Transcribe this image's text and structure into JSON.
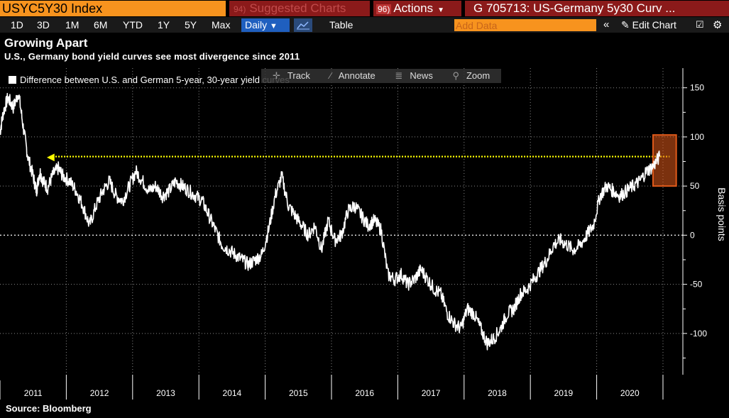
{
  "toolbar": {
    "ticker": "USYC5Y30 Index",
    "suggested_num": "94)",
    "suggested_label": "Suggested Charts",
    "actions_num": "96)",
    "actions_label": "Actions",
    "graph_title": "G 705713: US-Germany 5y30 Curv ..."
  },
  "periods": [
    "1D",
    "3D",
    "1M",
    "6M",
    "YTD",
    "1Y",
    "5Y",
    "Max"
  ],
  "frequency": "Daily",
  "table_label": "Table",
  "add_data_placeholder": "Add Data",
  "edit_chart_label": "Edit Chart",
  "header": {
    "title": "Growing Apart",
    "subtitle": "U.S., Germany bond yield curves see most divergence since 2011"
  },
  "legend": {
    "label": "Difference between U.S. and German 5-year, 30-year yield curves"
  },
  "chart_tools": {
    "track": "Track",
    "annotate": "Annotate",
    "news": "News",
    "zoom": "Zoom"
  },
  "source": "Source: Bloomberg",
  "colors": {
    "ticker_bg": "#f7931e",
    "tab_bg": "#8b1a1a",
    "daily_bg": "#1f5fbf",
    "line": "#ffffff",
    "highlight": "#ffff00",
    "box": "#e05a1a"
  },
  "chart_data": {
    "type": "line",
    "title": "Growing Apart",
    "subtitle": "U.S., Germany bond yield curves see most divergence since 2011",
    "ylabel": "Basis points",
    "y_ticks": [
      150,
      100,
      50,
      0,
      -50,
      -100
    ],
    "ylim": [
      -142,
      170
    ],
    "xlim": [
      2011.0,
      2021.3
    ],
    "x_tick_labels": [
      "2011",
      "2012",
      "2013",
      "2014",
      "2015",
      "2016",
      "2017",
      "2018",
      "2019",
      "2020"
    ],
    "legend_position": "top-left",
    "series": [
      {
        "name": "Difference between U.S. and German 5-year, 30-year yield curves",
        "x": [
          2011.0,
          2011.05,
          2011.12,
          2011.2,
          2011.28,
          2011.35,
          2011.42,
          2011.5,
          2011.55,
          2011.6,
          2011.65,
          2011.72,
          2011.8,
          2011.88,
          2011.95,
          2012.05,
          2012.15,
          2012.25,
          2012.35,
          2012.45,
          2012.55,
          2012.65,
          2012.75,
          2012.85,
          2012.95,
          2013.05,
          2013.15,
          2013.25,
          2013.35,
          2013.45,
          2013.55,
          2013.65,
          2013.75,
          2013.85,
          2013.95,
          2014.05,
          2014.15,
          2014.25,
          2014.35,
          2014.45,
          2014.55,
          2014.65,
          2014.75,
          2014.85,
          2014.95,
          2015.05,
          2015.15,
          2015.25,
          2015.35,
          2015.45,
          2015.55,
          2015.65,
          2015.75,
          2015.85,
          2015.95,
          2016.05,
          2016.15,
          2016.25,
          2016.35,
          2016.45,
          2016.55,
          2016.65,
          2016.75,
          2016.85,
          2016.95,
          2017.05,
          2017.15,
          2017.25,
          2017.35,
          2017.45,
          2017.55,
          2017.65,
          2017.75,
          2017.85,
          2017.95,
          2018.05,
          2018.15,
          2018.25,
          2018.35,
          2018.45,
          2018.55,
          2018.65,
          2018.75,
          2018.85,
          2018.95,
          2019.05,
          2019.15,
          2019.25,
          2019.35,
          2019.45,
          2019.55,
          2019.65,
          2019.75,
          2019.85,
          2019.95,
          2020.05,
          2020.15,
          2020.25,
          2020.35,
          2020.45,
          2020.55,
          2020.65,
          2020.75,
          2020.85,
          2020.95
        ],
        "y": [
          105,
          125,
          140,
          130,
          145,
          110,
          80,
          60,
          45,
          65,
          55,
          48,
          62,
          68,
          60,
          55,
          45,
          30,
          10,
          30,
          45,
          55,
          40,
          35,
          50,
          65,
          55,
          45,
          50,
          40,
          45,
          55,
          50,
          45,
          40,
          35,
          20,
          5,
          -10,
          -15,
          -20,
          -25,
          -30,
          -25,
          -20,
          5,
          40,
          60,
          30,
          20,
          10,
          0,
          10,
          -15,
          15,
          -5,
          0,
          25,
          30,
          20,
          10,
          15,
          5,
          -40,
          -45,
          -40,
          -50,
          -45,
          -35,
          -45,
          -55,
          -60,
          -80,
          -90,
          -95,
          -75,
          -80,
          -95,
          -110,
          -105,
          -95,
          -80,
          -75,
          -60,
          -55,
          -45,
          -35,
          -25,
          -10,
          -5,
          -10,
          -15,
          -10,
          0,
          10,
          40,
          50,
          45,
          40,
          45,
          50,
          55,
          65,
          70,
          80
        ]
      }
    ],
    "annotations": [
      {
        "type": "dotted-hline",
        "y": 80,
        "x_start": 2011.75,
        "x_end": 2021.1,
        "color": "#ffff00"
      },
      {
        "type": "highlight-box",
        "x_start": 2020.85,
        "x_end": 2021.2,
        "y_start": 50,
        "y_end": 102,
        "color": "#e05a1a"
      },
      {
        "type": "dotted-hline",
        "y": 0,
        "color": "#ffffff"
      }
    ]
  }
}
